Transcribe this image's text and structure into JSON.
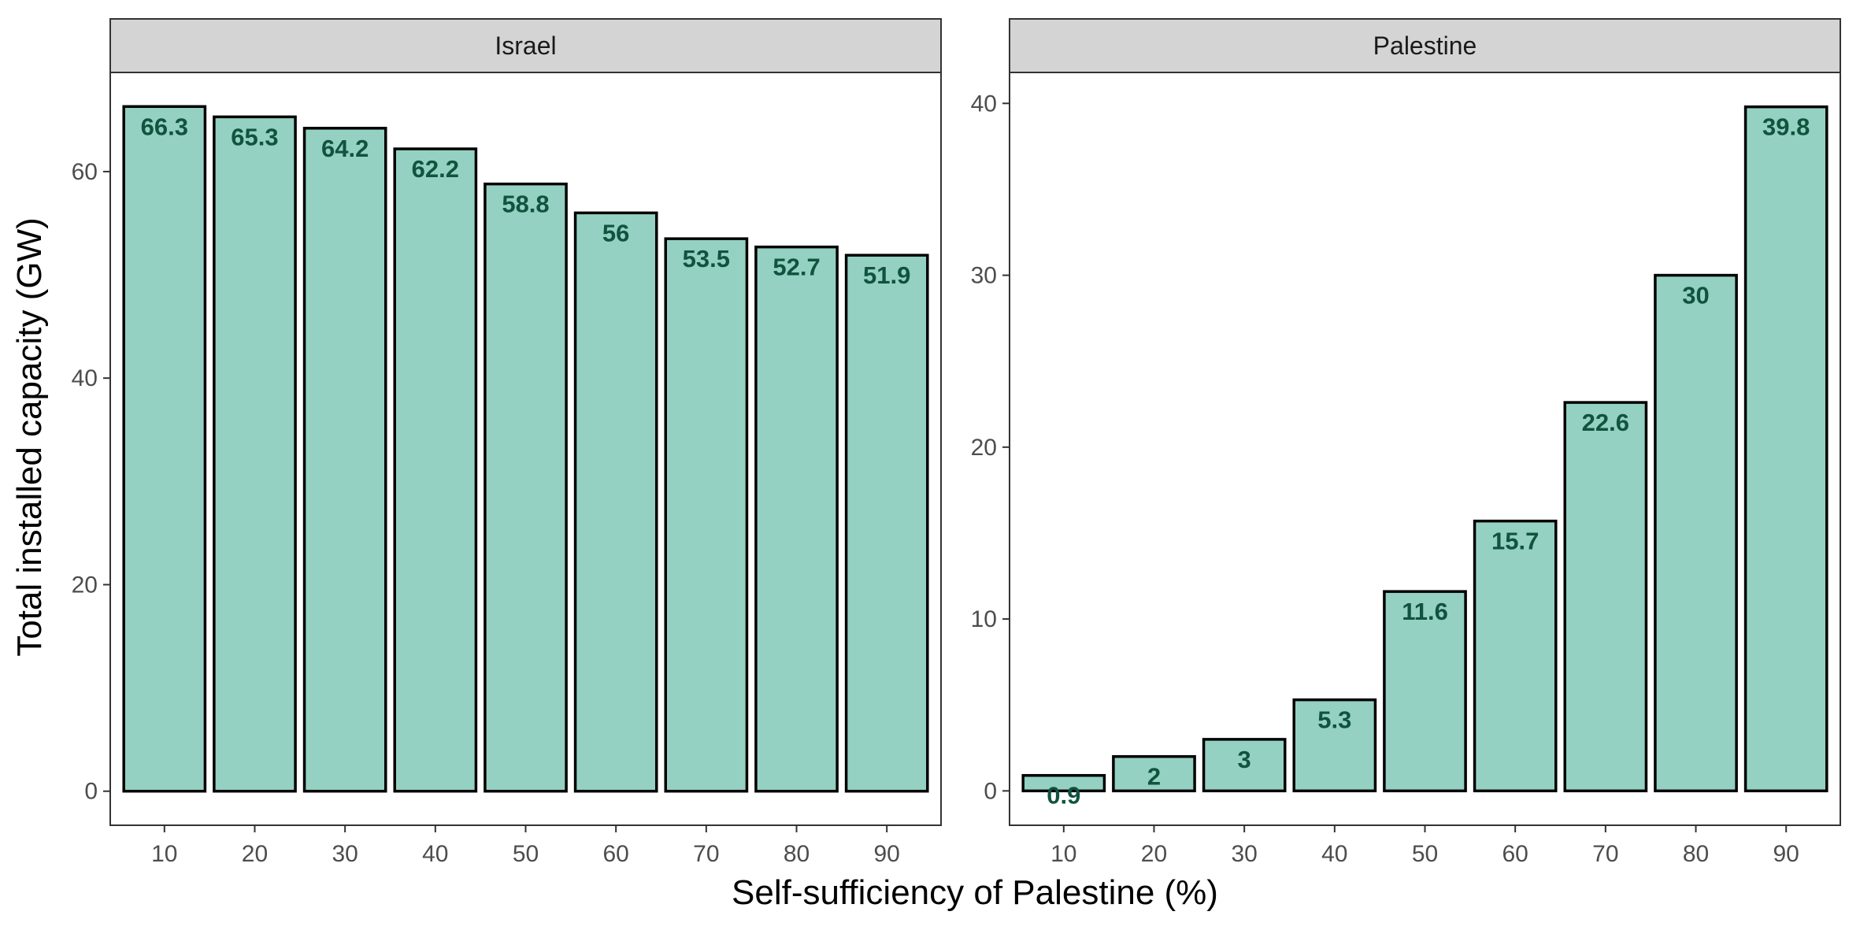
{
  "chart_data": {
    "type": "bar",
    "xlabel": "Self-sufficiency of Palestine (%)",
    "ylabel": "Total installed capacity (GW)",
    "bar_fill": "#94d1c2",
    "bar_stroke": "#000000",
    "label_color": "#10533f",
    "strip_fill": "#d4d4d4",
    "panels": [
      {
        "title": "Israel",
        "categories": [
          "10",
          "20",
          "30",
          "40",
          "50",
          "60",
          "70",
          "80",
          "90"
        ],
        "values": [
          66.3,
          65.3,
          64.2,
          62.2,
          58.8,
          56,
          53.5,
          52.7,
          51.9
        ],
        "labels": [
          "66.3",
          "65.3",
          "64.2",
          "62.2",
          "58.8",
          "56",
          "53.5",
          "52.7",
          "51.9"
        ],
        "ylim": [
          -3.3,
          69.6
        ],
        "yticks": [
          0,
          20,
          40,
          60
        ]
      },
      {
        "title": "Palestine",
        "categories": [
          "10",
          "20",
          "30",
          "40",
          "50",
          "60",
          "70",
          "80",
          "90"
        ],
        "values": [
          0.9,
          2,
          3,
          5.3,
          11.6,
          15.7,
          22.6,
          30,
          39.8
        ],
        "labels": [
          "0.9",
          "2",
          "3",
          "5.3",
          "11.6",
          "15.7",
          "22.6",
          "30",
          "39.8"
        ],
        "ylim": [
          -2,
          41.8
        ],
        "yticks": [
          0,
          10,
          20,
          30,
          40
        ]
      }
    ]
  }
}
